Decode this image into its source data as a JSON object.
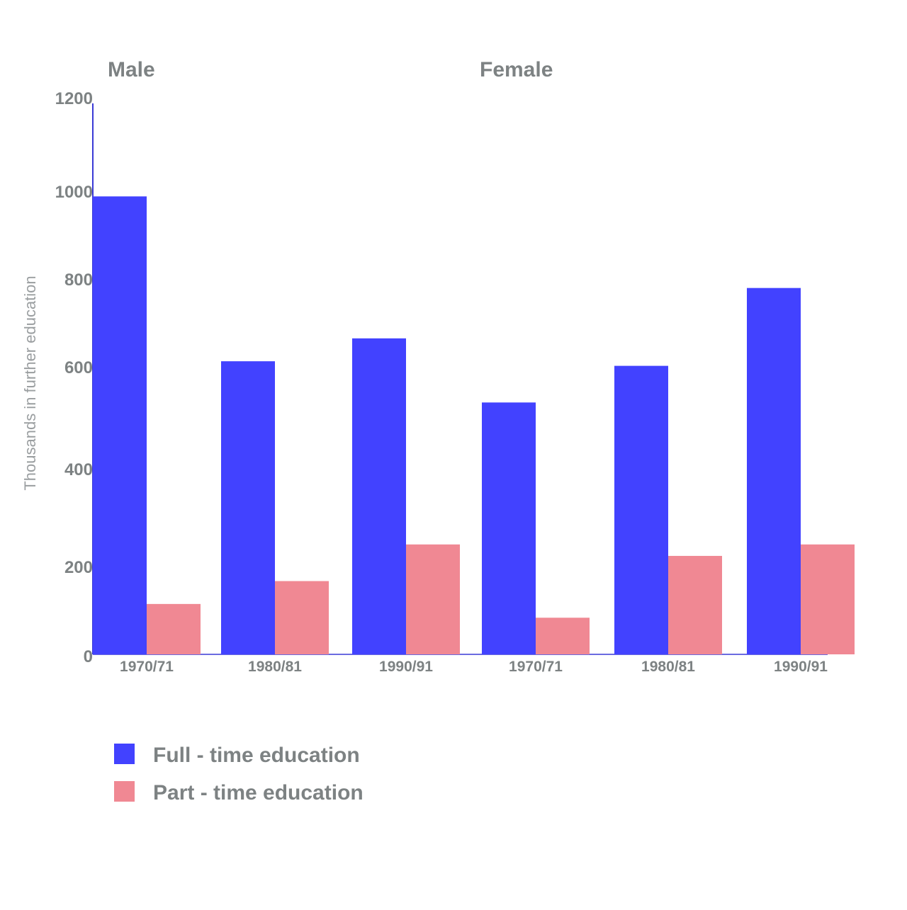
{
  "chart_data": {
    "type": "bar",
    "groups": [
      "Male",
      "Female"
    ],
    "categories": [
      "1970/71",
      "1980/81",
      "1990/91",
      "1970/71",
      "1980/81",
      "1990/91"
    ],
    "series": [
      {
        "name": "Full - time education",
        "color": "#4242ff",
        "values": [
          1000,
          640,
          690,
          550,
          630,
          800
        ]
      },
      {
        "name": "Part - time education",
        "color": "#f08893",
        "values": [
          110,
          160,
          240,
          80,
          215,
          240
        ]
      }
    ],
    "ylabel": "Thousands in further education",
    "ylim": [
      0,
      1200
    ],
    "yticks": [
      "0",
      "200",
      "400",
      "600",
      "800",
      "1000",
      "1200"
    ],
    "legend_position": "bottom-left",
    "grid": false
  }
}
